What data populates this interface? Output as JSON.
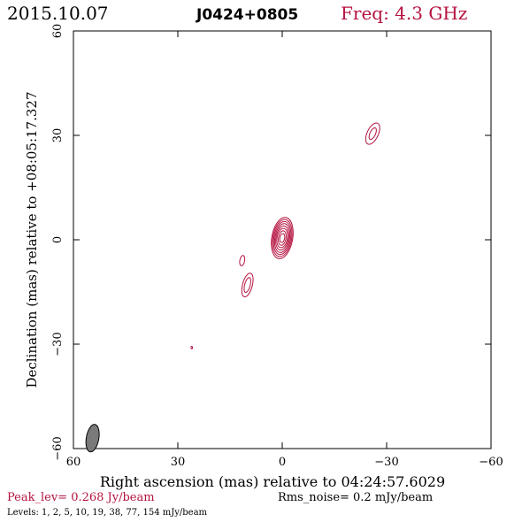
{
  "colors": {
    "contour": "#b5123f",
    "text": "#000000",
    "accent": "#b5123f",
    "beam_fill": "#7a7a7a"
  },
  "header": {
    "date": "2015.10.07",
    "source": "J0424+0805",
    "freq": "Freq: 4.3 GHz"
  },
  "footer": {
    "peak": "Peak_lev=  0.268 Jy/beam",
    "rms": "Rms_noise=  0.2 mJy/beam",
    "levels": "Levels:   1,   2,   5,  10,  19,  38,  77, 154 mJy/beam"
  },
  "chart_data": {
    "type": "contour",
    "xlabel": "Right ascension (mas) relative to 04:24:57.6029",
    "ylabel": "Declination (mas) relative to +08:05:17.327",
    "xlim": [
      60,
      -60
    ],
    "ylim": [
      -60,
      60
    ],
    "x_ticks": [
      60,
      30,
      0,
      -30,
      -60
    ],
    "y_ticks": [
      -60,
      -30,
      0,
      30,
      60
    ],
    "x_tick_labels": [
      "60",
      "30",
      "0",
      "−30",
      "−60"
    ],
    "y_tick_labels": [
      "−60",
      "−30",
      "0",
      "30",
      "60"
    ],
    "levels_mJy": [
      1,
      2,
      5,
      10,
      19,
      38,
      77,
      154
    ],
    "components": [
      {
        "name": "core",
        "x": 0.0,
        "y": 0.5,
        "rx": [
          3.0,
          2.7,
          2.4,
          2.1,
          1.8,
          1.5,
          1.1,
          0.7
        ],
        "ry": [
          6.0,
          5.4,
          4.8,
          4.2,
          3.5,
          2.8,
          2.1,
          1.3
        ],
        "angle": 10
      },
      {
        "name": "jet-a",
        "x": 10.0,
        "y": -13.0,
        "rx": [
          1.4,
          0.8
        ],
        "ry": [
          3.5,
          2.2
        ],
        "angle": 15
      },
      {
        "name": "jet-b",
        "x": 11.5,
        "y": -6.0,
        "rx": [
          0.7
        ],
        "ry": [
          1.5
        ],
        "angle": 10
      },
      {
        "name": "jet-c",
        "x": -26.0,
        "y": 30.5,
        "rx": [
          1.6,
          0.8
        ],
        "ry": [
          3.3,
          1.8
        ],
        "angle": 25
      },
      {
        "name": "jet-d",
        "x": 26.0,
        "y": -31.0,
        "rx": [
          0.2
        ],
        "ry": [
          0.35
        ],
        "angle": 0
      }
    ],
    "beam": {
      "x": 54.5,
      "y": -57.0,
      "major": 4.0,
      "minor": 1.8,
      "angle": 10
    }
  }
}
